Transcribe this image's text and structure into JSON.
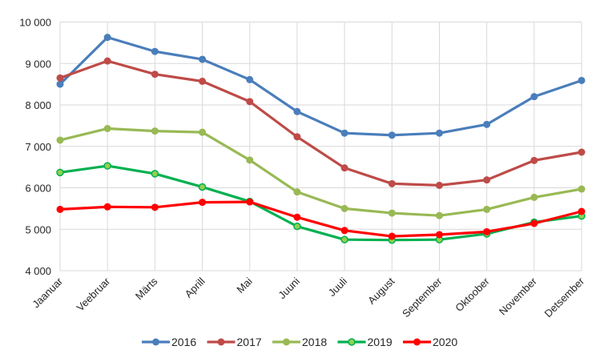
{
  "chart_data": {
    "type": "line",
    "title": "",
    "xlabel": "",
    "ylabel": "",
    "ylim": [
      4000,
      10000
    ],
    "yticks": [
      4000,
      5000,
      6000,
      7000,
      8000,
      9000,
      10000
    ],
    "ytick_labels": [
      "4 000",
      "5 000",
      "6 000",
      "7 000",
      "8 000",
      "9 000",
      "10 000"
    ],
    "grid": "both",
    "legend_position": "bottom",
    "categories": [
      "Jaanuar",
      "Veebruar",
      "Märts",
      "Aprill",
      "Mai",
      "Juuni",
      "Juuli",
      "August",
      "September",
      "Oktoober",
      "November",
      "Detsember"
    ],
    "series": [
      {
        "name": "2016",
        "color": "#4a7ebb",
        "marker_color": "#4a7ebb",
        "values": [
          8500,
          9630,
          9290,
          9100,
          8610,
          7840,
          7320,
          7270,
          7320,
          7530,
          8200,
          8590
        ]
      },
      {
        "name": "2017",
        "color": "#be4b48",
        "marker_color": "#be4b48",
        "values": [
          8650,
          9060,
          8740,
          8570,
          8080,
          7230,
          6480,
          6100,
          6060,
          6190,
          6660,
          6860
        ]
      },
      {
        "name": "2018",
        "color": "#98b954",
        "marker_color": "#98b954",
        "values": [
          7150,
          7430,
          7370,
          7340,
          6670,
          5900,
          5500,
          5390,
          5330,
          5480,
          5770,
          5970
        ]
      },
      {
        "name": "2019",
        "color": "#00b050",
        "marker_color": "#92d050",
        "values": [
          6370,
          6530,
          6340,
          6020,
          5670,
          5070,
          4750,
          4740,
          4750,
          4890,
          5170,
          5320
        ]
      },
      {
        "name": "2020",
        "color": "#ff0000",
        "marker_color": "#ff0000",
        "values": [
          5480,
          5540,
          5530,
          5650,
          5660,
          5290,
          4970,
          4830,
          4870,
          4940,
          5140,
          5430
        ]
      }
    ]
  }
}
